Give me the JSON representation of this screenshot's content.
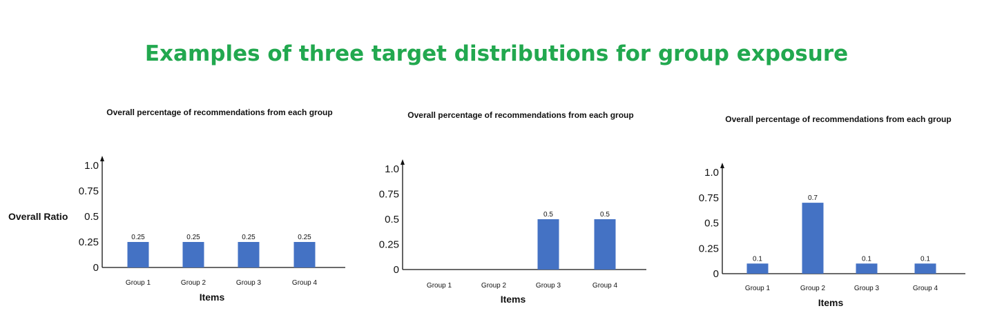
{
  "title": "Examples of three target distributions for group exposure",
  "colors": {
    "title": "#22a84f",
    "bar": "#4472c4",
    "axis": "#111111"
  },
  "chart_data": [
    {
      "type": "bar",
      "title": "Overall percentage of recommendations from each group",
      "categories": [
        "Group 1",
        "Group 2",
        "Group 3",
        "Group 4"
      ],
      "values": [
        0.25,
        0.25,
        0.25,
        0.25
      ],
      "data_labels": [
        "0.25",
        "0.25",
        "0.25",
        "0.25"
      ],
      "xlabel": "Items",
      "ylabel": "Overall Ratio",
      "yticks": [
        "0",
        "0.25",
        "0.5",
        "0.75",
        "1.0"
      ],
      "ylim": [
        0,
        1.0
      ],
      "grid": false
    },
    {
      "type": "bar",
      "title": "Overall percentage of recommendations from each group",
      "categories": [
        "Group 1",
        "Group 2",
        "Group 3",
        "Group 4"
      ],
      "values": [
        0,
        0,
        0.5,
        0.5
      ],
      "data_labels": [
        "",
        "",
        "0.5",
        "0.5"
      ],
      "xlabel": "Items",
      "ylabel": "",
      "yticks": [
        "0",
        "0.25",
        "0.5",
        "0.75",
        "1.0"
      ],
      "ylim": [
        0,
        1.0
      ],
      "grid": false
    },
    {
      "type": "bar",
      "title": "Overall percentage of recommendations from each group",
      "categories": [
        "Group 1",
        "Group 2",
        "Group 3",
        "Group 4"
      ],
      "values": [
        0.1,
        0.7,
        0.1,
        0.1
      ],
      "data_labels": [
        "0.1",
        "0.7",
        "0.1",
        "0.1"
      ],
      "xlabel": "Items",
      "ylabel": "",
      "yticks": [
        "0",
        "0.25",
        "0.5",
        "0.75",
        "1.0"
      ],
      "ylim": [
        0,
        1.0
      ],
      "grid": false
    }
  ]
}
